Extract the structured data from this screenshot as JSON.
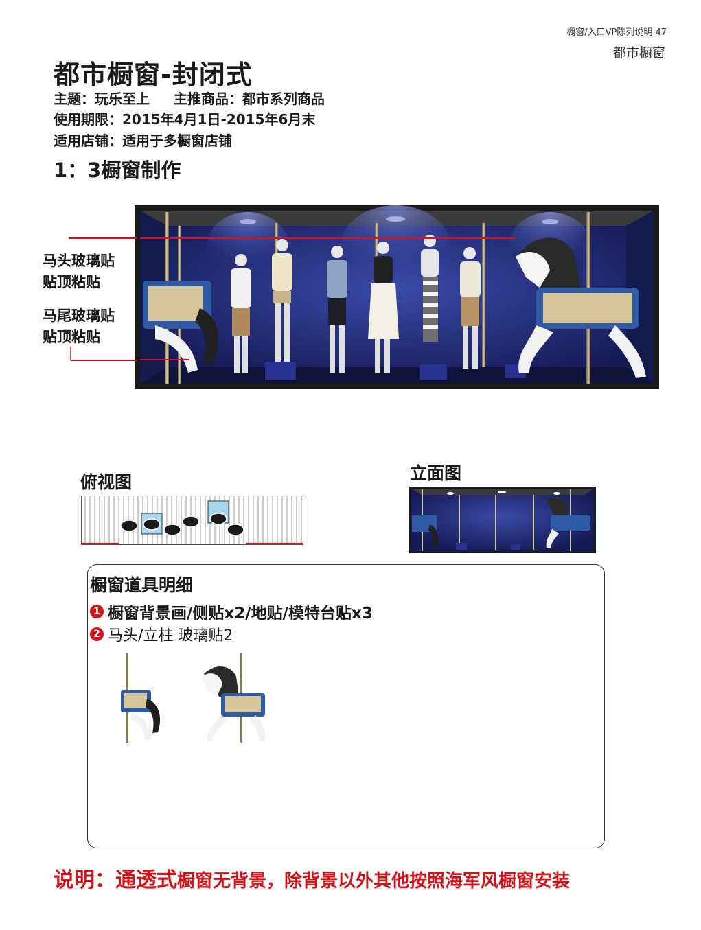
{
  "header": {
    "page_ref": "橱窗/入口VP陈列说明 47",
    "category": "都市橱窗"
  },
  "title": "都市橱窗-封闭式",
  "info": {
    "theme": "主题：玩乐至上     主推商品：都市系列商品",
    "period": "使用期限：2015年4月1日-2015年6月末",
    "stores": "适用店铺：适用于多橱窗店铺"
  },
  "subtitle": "1：3橱窗制作",
  "sticker_labels": {
    "horse_head_1": "马头玻璃贴",
    "horse_head_2": "贴顶粘贴",
    "horse_tail_1": "马尾玻璃贴",
    "horse_tail_2": "贴顶粘贴"
  },
  "views": {
    "top_view": "俯视图",
    "elevation": "立面图"
  },
  "details": {
    "title": "橱窗道具明细",
    "items": [
      {
        "num": "1",
        "text": "橱窗背景画/侧贴x2/地贴/模特台贴x3"
      },
      {
        "num": "2",
        "text": "马头/立柱 玻璃贴2"
      }
    ]
  },
  "note": {
    "prefix": "说明：",
    "emphasis": "通透式",
    "rest": "橱窗无背景，除背景以外其他按照海军风橱窗安装"
  },
  "colors": {
    "accent_red": "#d4141a",
    "window_blue": "#1c2470",
    "frame": "#1a1a1a"
  }
}
